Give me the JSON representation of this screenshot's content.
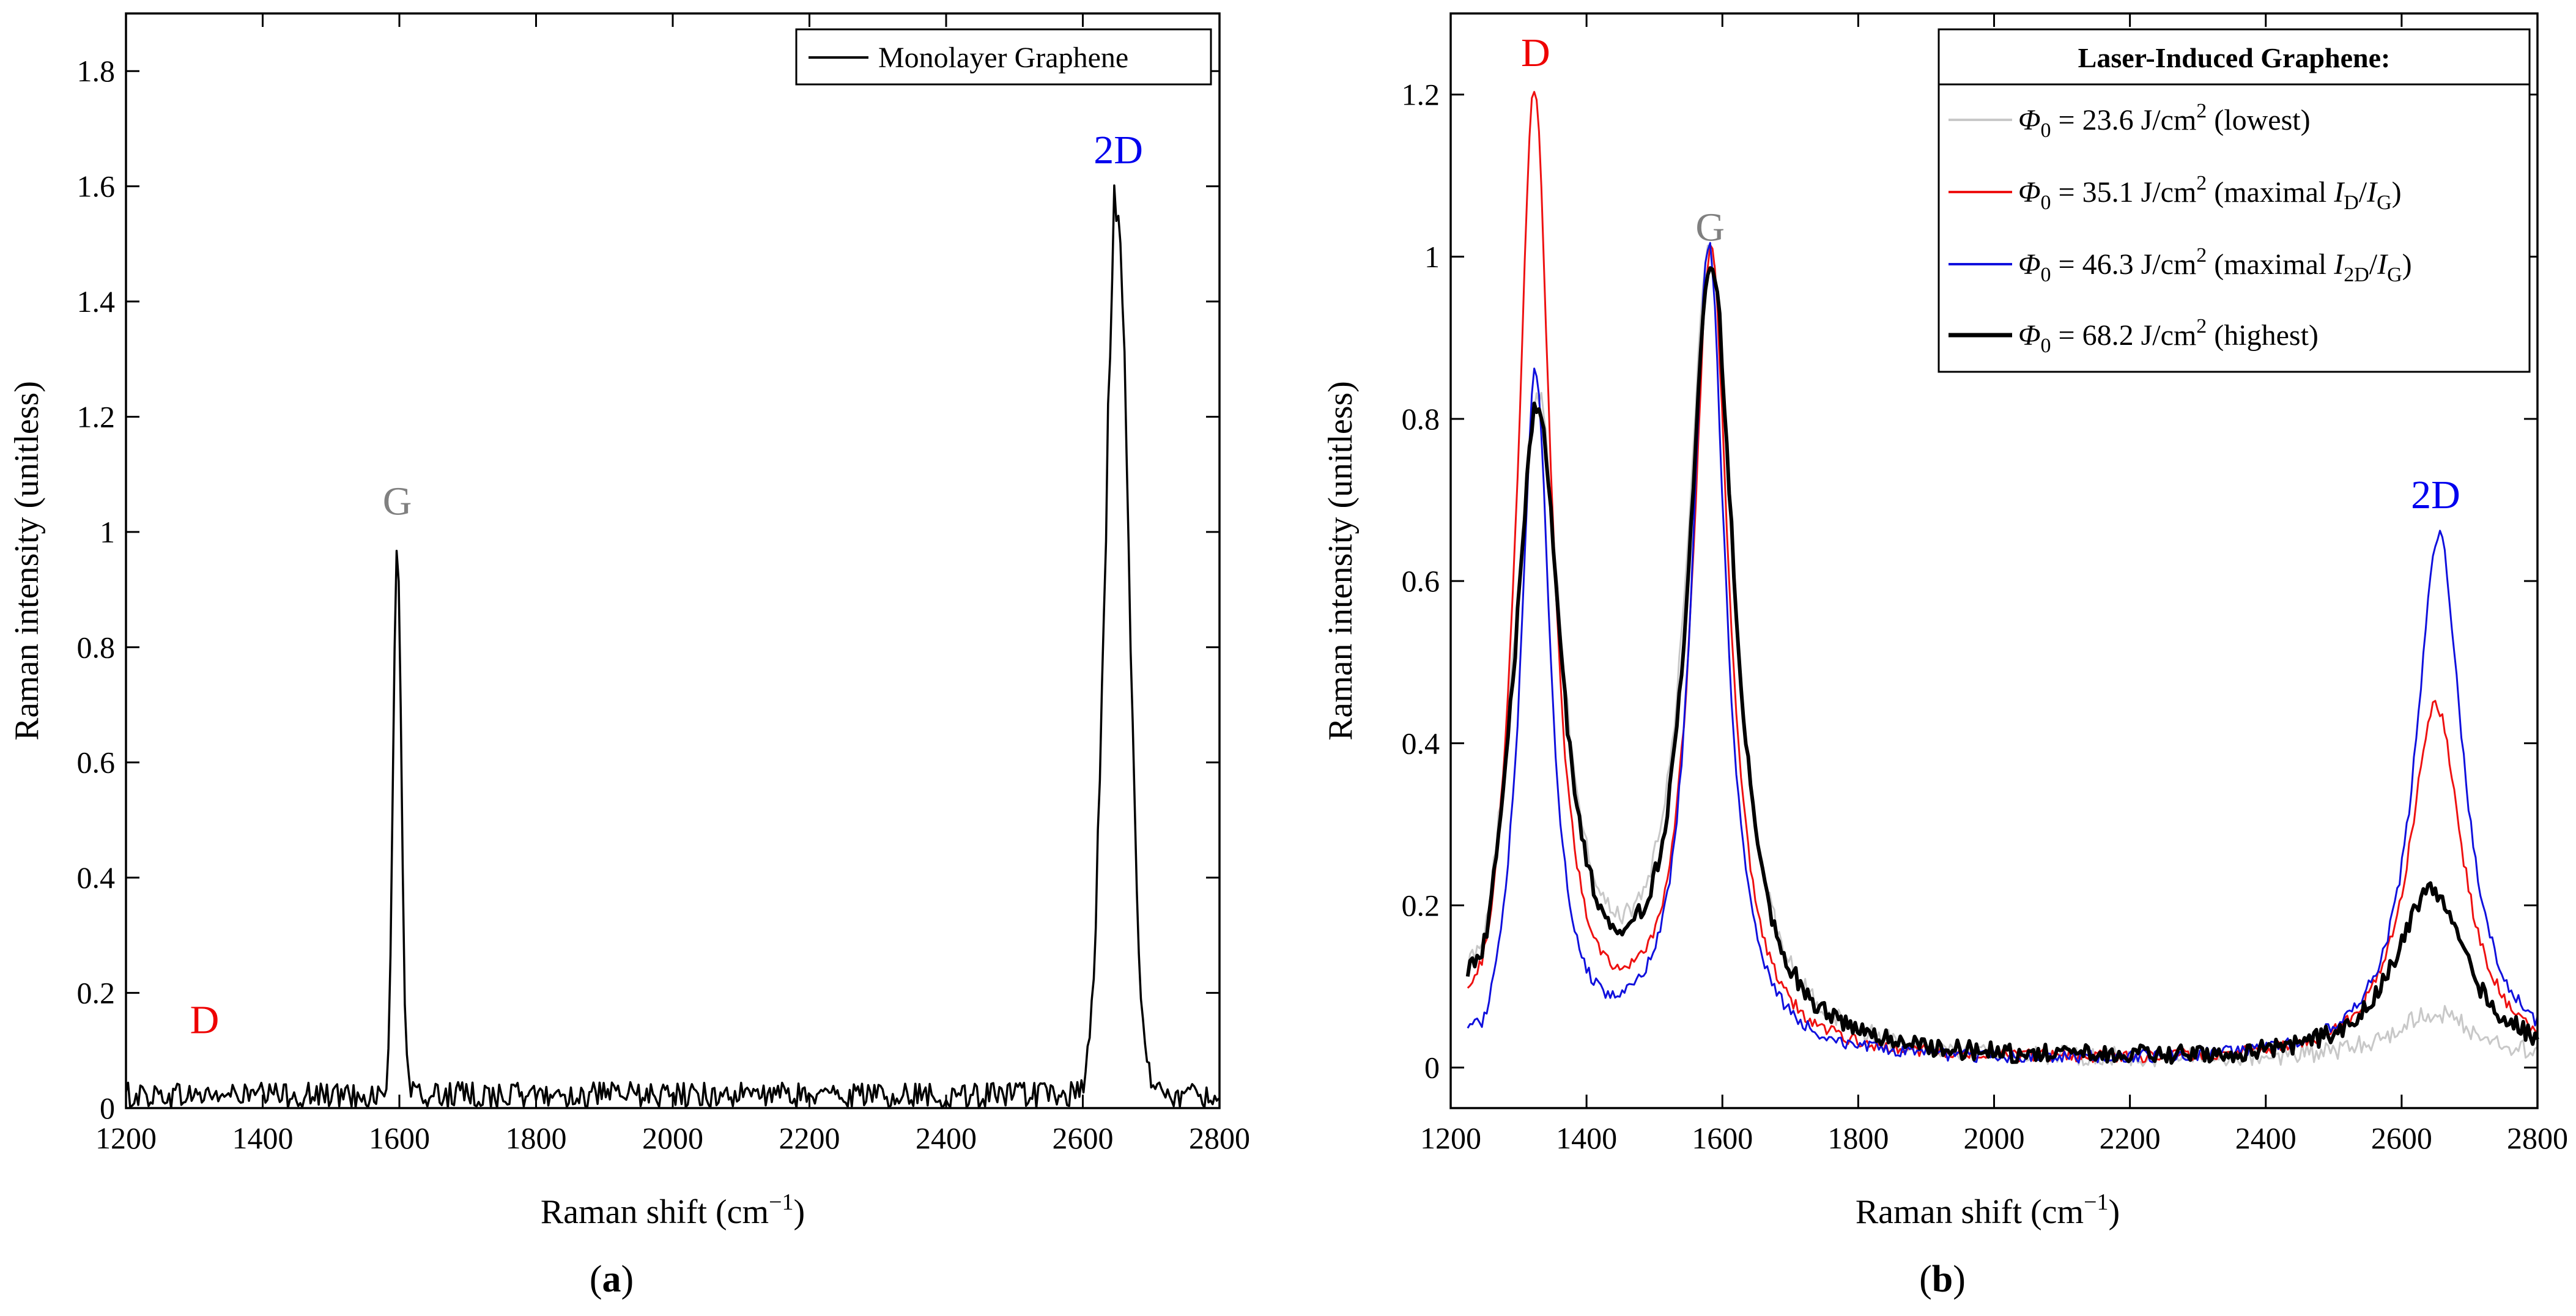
{
  "chart_data": [
    {
      "type": "line",
      "panel_label": "a",
      "xlabel": "Raman shift (cm",
      "xlabel_sup": "−1",
      "xlabel_close": ")",
      "ylabel": "Raman intensity (unitless)",
      "xlim": [
        1200,
        2800
      ],
      "ylim": [
        0,
        1.9
      ],
      "xticks": [
        "1200",
        "1400",
        "1600",
        "1800",
        "2000",
        "2200",
        "2400",
        "2600",
        "2800"
      ],
      "yticks": [
        "0",
        "0.2",
        "0.4",
        "0.6",
        "0.8",
        "1",
        "1.2",
        "1.4",
        "1.6",
        "1.8"
      ],
      "legend": {
        "label": "Monolayer Graphene",
        "position": "top-right"
      },
      "annotations": [
        {
          "text": "D",
          "color": "#ee0000",
          "x": 1315,
          "y": 0.13
        },
        {
          "text": "G",
          "color": "#808080",
          "x": 1597,
          "y": 1.03
        },
        {
          "text": "2D",
          "color": "#0000ee",
          "x": 2652,
          "y": 1.64
        }
      ],
      "series": [
        {
          "name": "Monolayer Graphene",
          "color": "#000000",
          "noise": 0.045,
          "peaks": [
            {
              "label": "G",
              "center": 1597,
              "height": 0.96,
              "fwhm": 14
            },
            {
              "label": "2D",
              "center": 2650,
              "height": 1.57,
              "fwhm": 40
            }
          ]
        }
      ]
    },
    {
      "type": "line",
      "panel_label": "b",
      "xlabel": "Raman shift (cm",
      "xlabel_sup": "−1",
      "xlabel_close": ")",
      "ylabel": "Raman intensity (unitless)",
      "xlim": [
        1200,
        2800
      ],
      "ylim": [
        -0.05,
        1.3
      ],
      "xticks": [
        "1200",
        "1400",
        "1600",
        "1800",
        "2000",
        "2200",
        "2400",
        "2600",
        "2800"
      ],
      "yticks": [
        "0",
        "0.2",
        "0.4",
        "0.6",
        "0.8",
        "1",
        "1.2"
      ],
      "legend": {
        "title": "Laser-Induced Graphene:",
        "position": "top-right",
        "entries": [
          {
            "phi": "Φ",
            "sub0": "0",
            "value": " = 23.6 J/cm",
            "sup": "2",
            "rest": " (lowest)"
          },
          {
            "phi": "Φ",
            "sub0": "0",
            "value": " = 35.1 J/cm",
            "sup": "2",
            "rest": " (maximal ",
            "ratio_num": "I",
            "ratio_num_sub": "D",
            "ratio_den": "I",
            "ratio_den_sub": "G",
            "close": ")"
          },
          {
            "phi": "Φ",
            "sub0": "0",
            "value": " = 46.3 J/cm",
            "sup": "2",
            "rest": " (maximal ",
            "ratio_num": "I",
            "ratio_num_sub": "2D",
            "ratio_den": "I",
            "ratio_den_sub": "G",
            "close": ")"
          },
          {
            "phi": "Φ",
            "sub0": "0",
            "value": " = 68.2 J/cm",
            "sup": "2",
            "rest": " (highest)"
          }
        ]
      },
      "annotations": [
        {
          "text": "D",
          "color": "#ee0000",
          "x": 1325,
          "y": 1.235
        },
        {
          "text": "G",
          "color": "#808080",
          "x": 1582,
          "y": 1.02
        },
        {
          "text": "2D",
          "color": "#0000ee",
          "x": 2650,
          "y": 0.69
        }
      ],
      "series": [
        {
          "name": "Φ0 = 23.6 J/cm2 (lowest)",
          "color": "#c8c8c8",
          "width": 3,
          "D": [
            1328,
            0.8,
            88
          ],
          "G": [
            1582,
            0.98,
            85
          ],
          "2D": [
            2648,
            0.06,
            150
          ],
          "base": 0.005,
          "noise": 0.012
        },
        {
          "name": "Φ0 = 35.1 J/cm2 (maximal ID/IG)",
          "color": "#ee1111",
          "width": 3,
          "D": [
            1323,
            1.19,
            60
          ],
          "G": [
            1583,
            0.99,
            65
          ],
          "2D": [
            2650,
            0.44,
            95
          ],
          "base": 0.005,
          "noise": 0.008
        },
        {
          "name": "Φ0 = 46.3 J/cm2 (maximal I2D/IG)",
          "color": "#1010dd",
          "width": 3,
          "D": [
            1325,
            0.84,
            52
          ],
          "G": [
            1580,
            1.0,
            60
          ],
          "2D": [
            2655,
            0.65,
            85
          ],
          "base": 0.005,
          "noise": 0.008
        },
        {
          "name": "Φ0 = 68.2 J/cm2 (highest)",
          "color": "#000000",
          "width": 6,
          "D": [
            1328,
            0.79,
            85
          ],
          "G": [
            1584,
            0.97,
            82
          ],
          "2D": [
            2642,
            0.21,
            130
          ],
          "base": 0.005,
          "noise": 0.012
        }
      ]
    }
  ]
}
